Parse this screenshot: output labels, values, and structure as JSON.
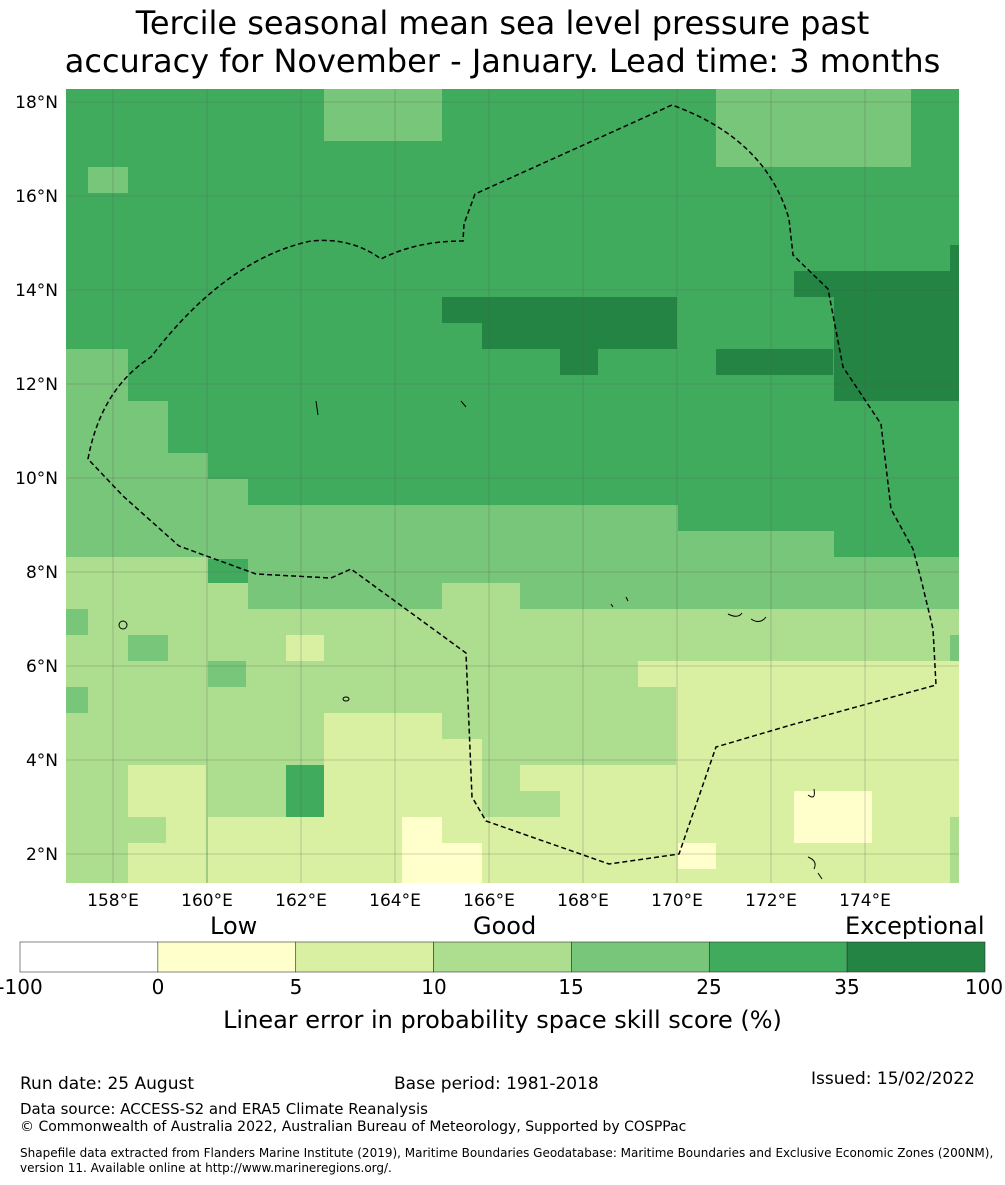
{
  "title_line1": "Tercile seasonal mean sea level pressure past",
  "title_line2": "accuracy for November - January. Lead time: 3 months",
  "map": {
    "lon_range": [
      157,
      176
    ],
    "lat_range": [
      1.4,
      18.4
    ],
    "x_ticks": [
      "158°E",
      "160°E",
      "162°E",
      "164°E",
      "166°E",
      "168°E",
      "170°E",
      "172°E",
      "174°E"
    ],
    "y_ticks": [
      "18°N",
      "16°N",
      "14°N",
      "12°N",
      "10°N",
      "8°N",
      "6°N",
      "4°N",
      "2°N"
    ],
    "boundary": "dashed",
    "grid": true
  },
  "colorbar": {
    "categories": [
      "Low",
      "Good",
      "Exceptional"
    ],
    "ticks": [
      "-100",
      "0",
      "5",
      "10",
      "15",
      "25",
      "35",
      "100"
    ],
    "colors": [
      "#ffffff",
      "#ffffcc",
      "#d9f0a3",
      "#addd8e",
      "#78c679",
      "#41ab5d",
      "#238443"
    ],
    "label": "Linear error in probability space skill score (%)"
  },
  "footer": {
    "run_date": "Run date: 25 August",
    "base_period": "Base period: 1981-2018",
    "issued": "Issued: 15/02/2022",
    "data_source": "Data source: ACCESS-S2 and ERA5 Climate Reanalysis",
    "copyright": "© Commonwealth of Australia 2022, Australian Bureau of Meteorology, Supported by COSPPac",
    "shapefile": "Shapefile data extracted from Flanders Marine Institute (2019), Maritime Boundaries Geodatabase: Maritime Boundaries and Exclusive Economic Zones (200NM), version 11. Available online at http://www.marineregions.org/."
  }
}
